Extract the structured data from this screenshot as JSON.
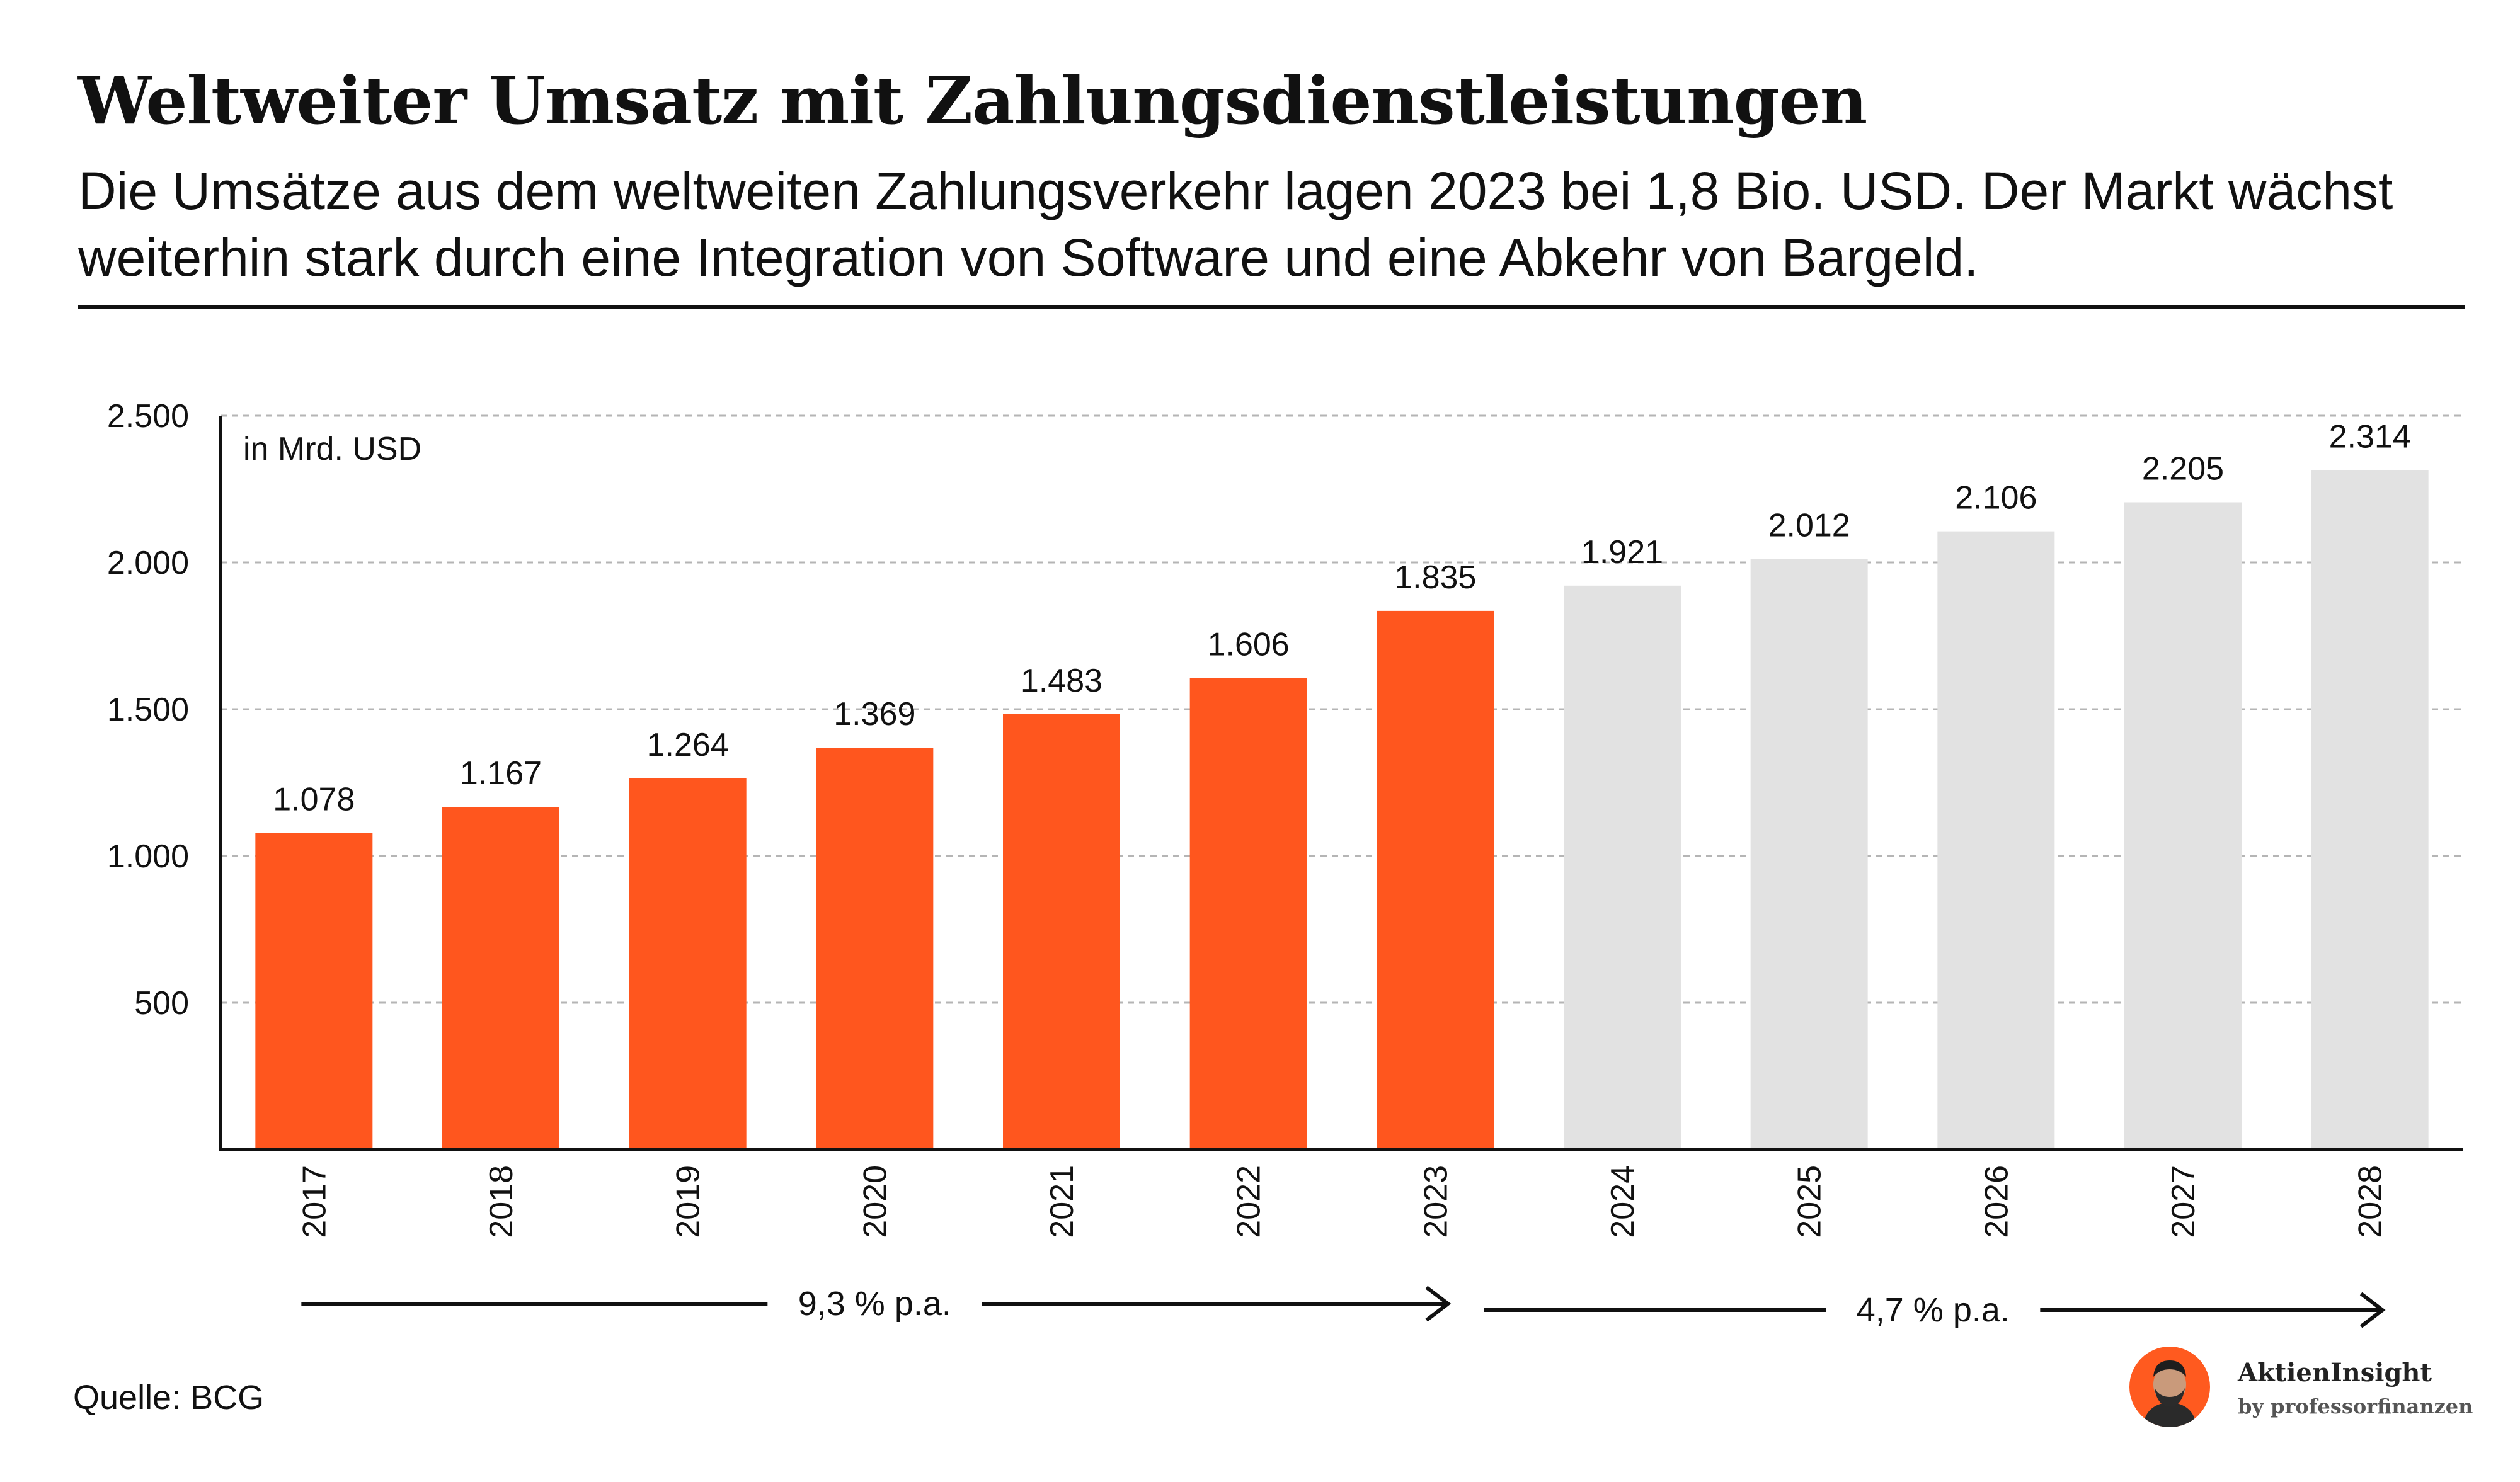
{
  "header": {
    "title": "Weltweiter Umsatz mit Zahlungsdienstleistungen",
    "subtitle": "Die Umsätze aus dem weltweiten Zahlungsverkehr lagen 2023 bei 1,8 Bio. USD. Der Markt wächst weiterhin stark durch eine Integration von Software und eine Abkehr von Bargeld."
  },
  "chart_data": {
    "type": "bar",
    "title": "Weltweiter Umsatz mit Zahlungsdienstleistungen",
    "unit_label": "in Mrd. USD",
    "categories": [
      "2017",
      "2018",
      "2019",
      "2020",
      "2021",
      "2022",
      "2023",
      "2024",
      "2025",
      "2026",
      "2027",
      "2028"
    ],
    "values": [
      1078,
      1167,
      1264,
      1369,
      1483,
      1606,
      1835,
      1921,
      2012,
      2106,
      2205,
      2314
    ],
    "value_labels": [
      "1.078",
      "1.167",
      "1.264",
      "1.369",
      "1.483",
      "1.606",
      "1.835",
      "1.921",
      "2.012",
      "2.106",
      "2.205",
      "2.314"
    ],
    "ylim": [
      0,
      2500
    ],
    "yticks": [
      500,
      1000,
      1500,
      2000,
      2500
    ],
    "ytick_labels": [
      "500",
      "1.000",
      "1.500",
      "2.000",
      "2.500"
    ],
    "grid": "horizontal-dashed",
    "colors": {
      "actual": "#ff561e",
      "forecast": "#e2e2e2"
    },
    "forecast_from_index": 7,
    "growth_annotations": [
      {
        "label": "9,3 % p.a.",
        "from": "2017",
        "to": "2023"
      },
      {
        "label": "4,7 % p.a.",
        "from": "2024",
        "to": "2028"
      }
    ]
  },
  "footer": {
    "source": "Quelle: BCG",
    "brand_name": "AktienInsight",
    "brand_sub": "by professorfinanzen"
  }
}
